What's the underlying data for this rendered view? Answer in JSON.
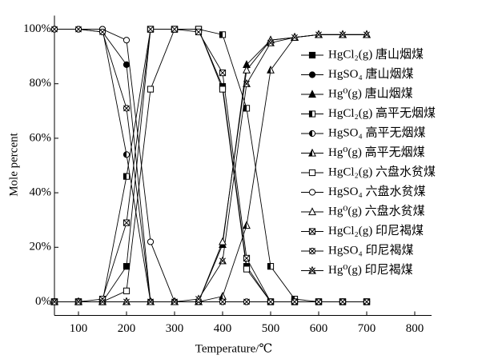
{
  "chart_data": {
    "type": "line",
    "x_label": "Temperature/℃",
    "y_label": "Mole percent",
    "xlim": [
      50,
      835
    ],
    "ylim": [
      -5,
      105
    ],
    "xticks": [
      100,
      200,
      300,
      400,
      500,
      600,
      700,
      800
    ],
    "yticks": [
      {
        "value": 0,
        "label": "0%"
      },
      {
        "value": 20,
        "label": "20%"
      },
      {
        "value": 40,
        "label": "40%"
      },
      {
        "value": 60,
        "label": "60%"
      },
      {
        "value": 80,
        "label": "80%"
      },
      {
        "value": 100,
        "label": "100%"
      }
    ],
    "x": [
      50,
      100,
      150,
      200,
      250,
      300,
      350,
      400,
      450,
      500,
      550,
      600,
      650,
      700
    ],
    "series": [
      {
        "name": "HgCl₂(g) 唐山烟煤",
        "color": "#000000",
        "marker": "square",
        "fill": "full",
        "values": [
          0,
          0,
          0,
          13,
          100,
          100,
          100,
          79,
          13,
          0,
          0,
          0,
          0,
          0
        ]
      },
      {
        "name": "HgSO₄ 唐山烟煤",
        "color": "#000000",
        "marker": "circle",
        "fill": "full",
        "values": [
          100,
          100,
          99,
          87,
          0,
          0,
          0,
          0,
          0,
          0,
          0,
          0,
          0,
          0
        ]
      },
      {
        "name": "Hg⁰(g) 唐山烟煤",
        "color": "#000000",
        "marker": "triangle",
        "fill": "full",
        "values": [
          0,
          0,
          0,
          0,
          0,
          0,
          0,
          21,
          87,
          96,
          97,
          98,
          98,
          98
        ]
      },
      {
        "name": "HgCl₂(g) 高平无烟煤",
        "color": "#000000",
        "marker": "square",
        "fill": "half",
        "values": [
          0,
          0,
          0,
          46,
          100,
          100,
          100,
          98,
          71,
          13,
          1,
          0,
          0,
          0
        ]
      },
      {
        "name": "HgSO₄ 高平无烟煤",
        "color": "#000000",
        "marker": "circle",
        "fill": "half",
        "values": [
          100,
          100,
          100,
          54,
          0,
          0,
          0,
          0,
          0,
          0,
          0,
          0,
          0,
          0
        ]
      },
      {
        "name": "Hg⁰(g) 高平无烟煤",
        "color": "#000000",
        "marker": "triangle",
        "fill": "half",
        "values": [
          0,
          0,
          0,
          0,
          0,
          0,
          0,
          2,
          28,
          85,
          97,
          98,
          98,
          98
        ]
      },
      {
        "name": "HgCl₂(g) 六盘水贫煤",
        "color": "#000000",
        "marker": "square",
        "fill": "none",
        "values": [
          0,
          0,
          0,
          4,
          78,
          100,
          100,
          78,
          12,
          0,
          0,
          0,
          0,
          0
        ]
      },
      {
        "name": "HgSO₄ 六盘水贫煤",
        "color": "#000000",
        "marker": "circle",
        "fill": "none",
        "values": [
          100,
          100,
          100,
          96,
          22,
          0,
          0,
          0,
          0,
          0,
          0,
          0,
          0,
          0
        ]
      },
      {
        "name": "Hg⁰(g) 六盘水贫煤",
        "color": "#000000",
        "marker": "triangle",
        "fill": "none",
        "values": [
          0,
          0,
          0,
          0,
          0,
          0,
          0,
          22,
          85,
          96,
          97,
          98,
          98,
          98
        ]
      },
      {
        "name": "HgCl₂(g) 印尼褐煤",
        "color": "#000000",
        "marker": "square",
        "fill": "cross",
        "values": [
          0,
          0,
          1,
          29,
          100,
          100,
          99,
          84,
          16,
          0,
          0,
          0,
          0,
          0
        ]
      },
      {
        "name": "HgSO₄ 印尼褐煤",
        "color": "#000000",
        "marker": "circle",
        "fill": "cross",
        "values": [
          100,
          100,
          99,
          71,
          0,
          0,
          0,
          0,
          0,
          0,
          0,
          0,
          0,
          0
        ]
      },
      {
        "name": "Hg⁰(g) 印尼褐煤",
        "color": "#000000",
        "marker": "triangle",
        "fill": "cross",
        "values": [
          0,
          0,
          0,
          0,
          0,
          0,
          1,
          15,
          80,
          95,
          97,
          98,
          98,
          98
        ]
      }
    ]
  }
}
